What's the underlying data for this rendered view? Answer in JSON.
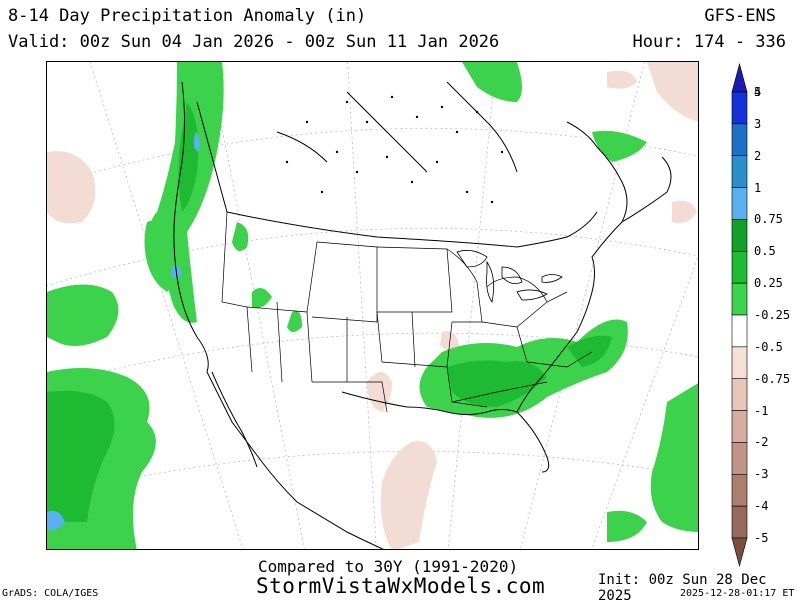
{
  "header": {
    "title": "8-14 Day Precipitation Anomaly (in)",
    "valid": "Valid: 00z Sun 04 Jan 2026 - 00z Sun 11 Jan 2026",
    "model": "GFS-ENS",
    "hour": "Hour: 174 - 336"
  },
  "legend": {
    "levels": [
      "5",
      "4",
      "3",
      "2",
      "1",
      "0.75",
      "0.5",
      "0.25",
      "-0.25",
      "-0.5",
      "-0.75",
      "-1",
      "-2",
      "-3",
      "-4",
      "-5"
    ],
    "colors": [
      "#1d1bb1",
      "#1432d8",
      "#1e6fc8",
      "#2b8fce",
      "#5aaff0",
      "#14a028",
      "#1ebb32",
      "#3cd24c",
      "#ffffff",
      "#f5e0d8",
      "#e6c6b8",
      "#d6ada0",
      "#c29488",
      "#ad7d70",
      "#97685c",
      "#7a4e42"
    ]
  },
  "footer": {
    "compared": "Compared to 30Y (1991-2020)",
    "site": "StormVistaWxModels.com",
    "grads": "GrADS: COLA/IGES",
    "init": "Init: 00z Sun 28 Dec 2025",
    "stamp": "2025-12-28-01:17 ET"
  }
}
